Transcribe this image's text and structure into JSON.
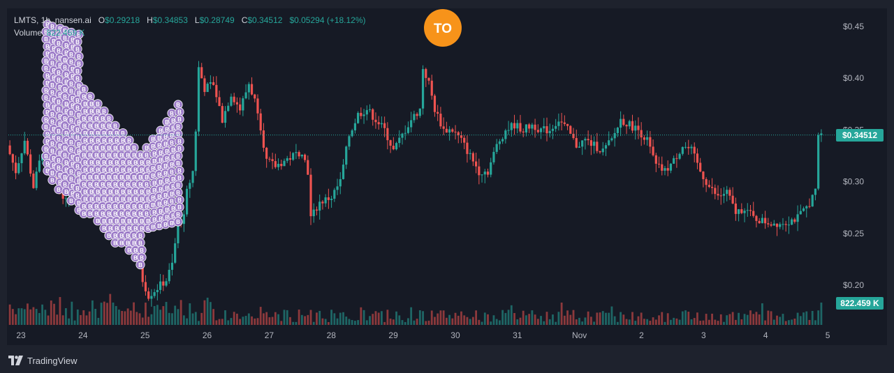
{
  "legend": {
    "symbol": "LMTS, 1h, nansen.ai",
    "open_label": "O",
    "open": "$0.29218",
    "high_label": "H",
    "high": "$0.34853",
    "low_label": "L",
    "low": "$0.28749",
    "close_label": "C",
    "close": "$0.34512",
    "change": "$0.05294 (+18.12%)",
    "volume_label": "Volume",
    "volume": "822.459 K"
  },
  "marker": {
    "label": "TO"
  },
  "footer": {
    "brand": "TradingView"
  },
  "colors": {
    "up": "#26a69a",
    "down": "#ef5350",
    "marker": "#f7931a",
    "buy_bubble": "#9c7bc8",
    "background": "#161a25"
  },
  "chart_data": {
    "type": "candlestick",
    "y_ticks": [
      "$0.45",
      "$0.40",
      "$0.35",
      "$0.30",
      "$0.25",
      "$0.20"
    ],
    "y_tick_values": [
      0.45,
      0.4,
      0.35,
      0.3,
      0.25,
      0.2
    ],
    "ylim": [
      0.182,
      0.468
    ],
    "x_ticks": [
      "23",
      "24",
      "25",
      "26",
      "27",
      "28",
      "29",
      "30",
      "31",
      "Nov",
      "2",
      "3",
      "4",
      "5"
    ],
    "last_price": "$0.34512",
    "last_volume": "822.459 K",
    "price_path": [
      [
        0,
        0.335
      ],
      [
        3,
        0.31
      ],
      [
        6,
        0.34
      ],
      [
        9,
        0.295
      ],
      [
        12,
        0.33
      ],
      [
        16,
        0.31
      ],
      [
        20,
        0.28
      ],
      [
        24,
        0.31
      ],
      [
        28,
        0.275
      ],
      [
        32,
        0.3
      ],
      [
        35,
        0.265
      ],
      [
        38,
        0.285
      ],
      [
        41,
        0.26
      ],
      [
        44,
        0.24
      ],
      [
        46,
        0.205
      ],
      [
        48,
        0.19
      ],
      [
        50,
        0.195
      ],
      [
        52,
        0.2
      ],
      [
        54,
        0.205
      ],
      [
        56,
        0.22
      ],
      [
        58,
        0.26
      ],
      [
        60,
        0.265
      ],
      [
        61,
        0.29
      ],
      [
        63,
        0.31
      ],
      [
        64,
        0.35
      ],
      [
        65,
        0.41
      ],
      [
        67,
        0.39
      ],
      [
        70,
        0.395
      ],
      [
        73,
        0.36
      ],
      [
        76,
        0.385
      ],
      [
        79,
        0.37
      ],
      [
        82,
        0.395
      ],
      [
        85,
        0.37
      ],
      [
        88,
        0.32
      ],
      [
        91,
        0.315
      ],
      [
        94,
        0.32
      ],
      [
        97,
        0.325
      ],
      [
        100,
        0.33
      ],
      [
        102,
        0.31
      ],
      [
        103,
        0.265
      ],
      [
        106,
        0.28
      ],
      [
        110,
        0.285
      ],
      [
        113,
        0.3
      ],
      [
        116,
        0.345
      ],
      [
        119,
        0.365
      ],
      [
        122,
        0.37
      ],
      [
        125,
        0.36
      ],
      [
        128,
        0.35
      ],
      [
        131,
        0.33
      ],
      [
        134,
        0.345
      ],
      [
        137,
        0.36
      ],
      [
        140,
        0.37
      ],
      [
        141,
        0.41
      ],
      [
        143,
        0.395
      ],
      [
        145,
        0.37
      ],
      [
        148,
        0.35
      ],
      [
        151,
        0.35
      ],
      [
        154,
        0.34
      ],
      [
        157,
        0.325
      ],
      [
        160,
        0.31
      ],
      [
        163,
        0.31
      ],
      [
        166,
        0.335
      ],
      [
        169,
        0.35
      ],
      [
        172,
        0.355
      ],
      [
        175,
        0.35
      ],
      [
        178,
        0.355
      ],
      [
        181,
        0.35
      ],
      [
        184,
        0.35
      ],
      [
        187,
        0.36
      ],
      [
        190,
        0.35
      ],
      [
        193,
        0.335
      ],
      [
        196,
        0.34
      ],
      [
        199,
        0.335
      ],
      [
        202,
        0.33
      ],
      [
        205,
        0.34
      ],
      [
        208,
        0.36
      ],
      [
        211,
        0.355
      ],
      [
        214,
        0.35
      ],
      [
        217,
        0.34
      ],
      [
        220,
        0.315
      ],
      [
        223,
        0.31
      ],
      [
        226,
        0.32
      ],
      [
        229,
        0.335
      ],
      [
        232,
        0.33
      ],
      [
        235,
        0.31
      ],
      [
        238,
        0.295
      ],
      [
        241,
        0.285
      ],
      [
        244,
        0.29
      ],
      [
        247,
        0.27
      ],
      [
        250,
        0.275
      ],
      [
        253,
        0.265
      ],
      [
        256,
        0.262
      ],
      [
        259,
        0.26
      ],
      [
        262,
        0.26
      ],
      [
        265,
        0.262
      ],
      [
        268,
        0.265
      ],
      [
        271,
        0.275
      ],
      [
        274,
        0.29
      ],
      [
        275,
        0.345
      ]
    ],
    "series": [
      {
        "name": "Volume",
        "values": []
      }
    ]
  }
}
